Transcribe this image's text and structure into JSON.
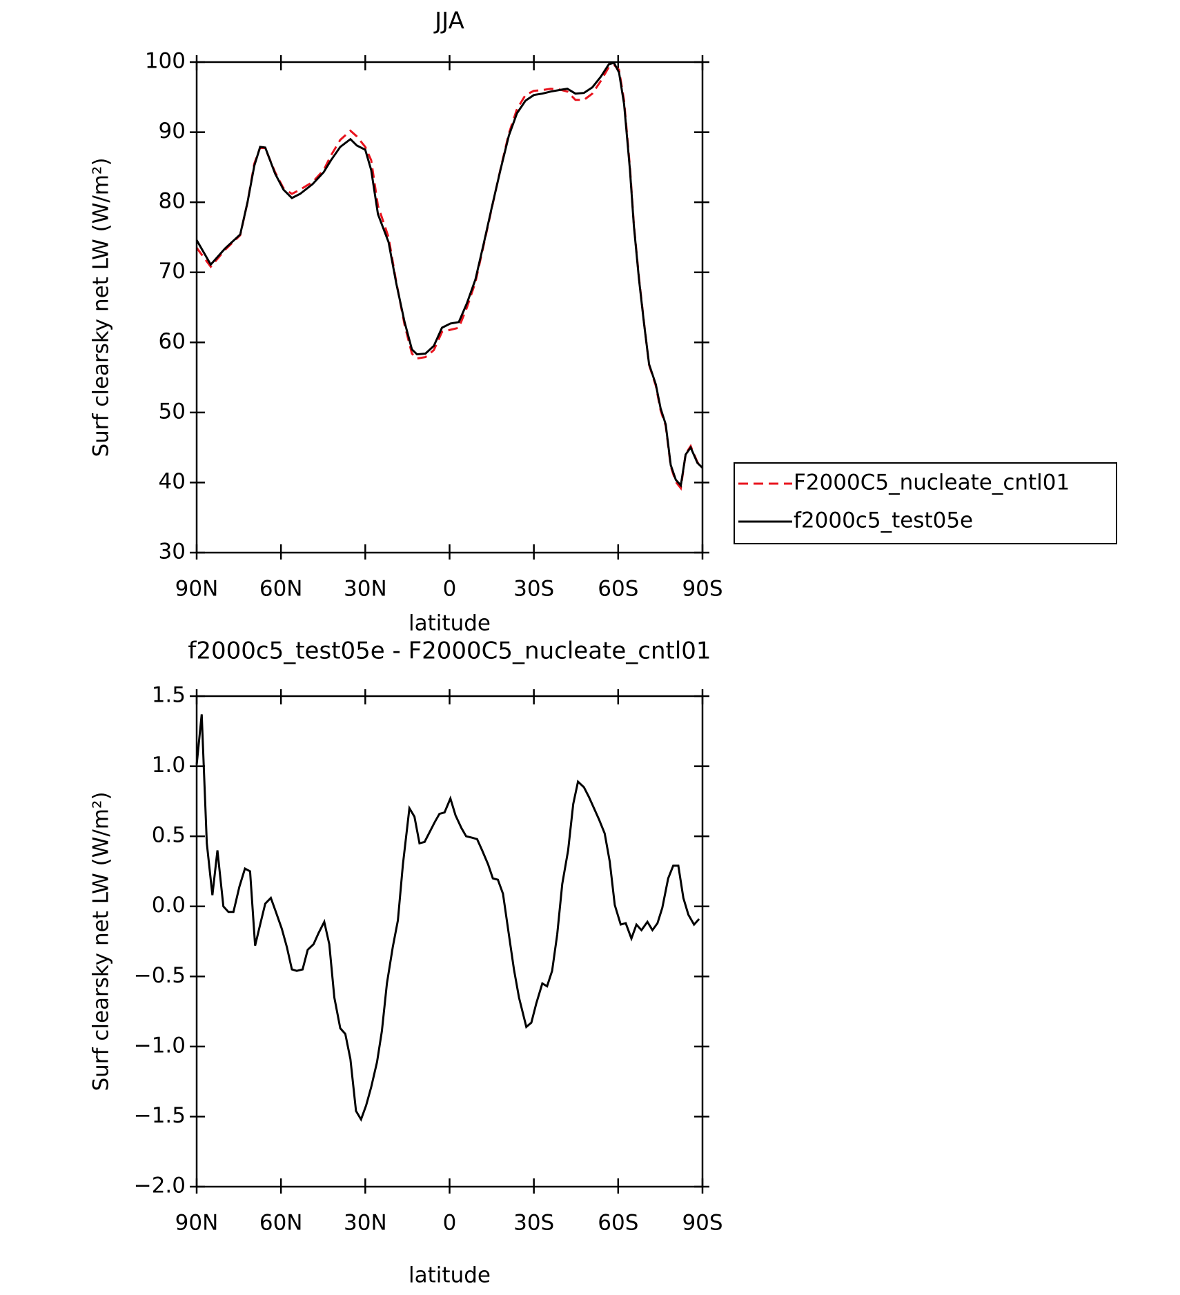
{
  "chart_data": [
    {
      "type": "line",
      "title": "JJA",
      "xlabel": "latitude",
      "ylabel": "Surf clearsky net LW (W/m²)",
      "xlim": [
        90,
        -90
      ],
      "xticks": [
        {
          "value": 90,
          "label": "90N"
        },
        {
          "value": 60,
          "label": "60N"
        },
        {
          "value": 30,
          "label": "30N"
        },
        0,
        {
          "value": -30,
          "label": "30S"
        },
        {
          "value": -60,
          "label": "60S"
        },
        {
          "value": -90,
          "label": "90S"
        }
      ],
      "ylim": [
        30,
        100
      ],
      "yticks": [
        30,
        40,
        50,
        60,
        70,
        80,
        90,
        100
      ],
      "legend": "right",
      "x": [
        90,
        85,
        79.9,
        74.5,
        71.9,
        69.5,
        67.4,
        65.6,
        62.1,
        59.1,
        56.1,
        53.2,
        48.7,
        44.8,
        42.2,
        38.9,
        35.3,
        33,
        30,
        27.9,
        25.5,
        21.7,
        19,
        16,
        13.4,
        11.6,
        8.6,
        5.6,
        2.7,
        -0.3,
        -3.3,
        -6.2,
        -9.2,
        -12.2,
        -15.1,
        -18.1,
        -21.1,
        -24,
        -27,
        -30,
        -33,
        -36,
        -38.9,
        -41.9,
        -44.8,
        -47.8,
        -50.8,
        -53.8,
        -56.7,
        -58.5,
        -60.3,
        -62.1,
        -64.2,
        -65.6,
        -67.4,
        -69.2,
        -71,
        -73.4,
        -75.1,
        -76.9,
        -78.7,
        -80.5,
        -82.3,
        -84,
        -85.8,
        -88.2,
        -90
      ],
      "series": [
        {
          "name": "F2000C5_nucleate_cntl01",
          "color": "#e8141e",
          "line_style": "dashed",
          "values": [
            73.5,
            70.8,
            73.2,
            75.3,
            80,
            85.5,
            87.8,
            87.7,
            84.3,
            82,
            81.2,
            81.8,
            82.9,
            84.6,
            86.7,
            88.9,
            90.2,
            89.4,
            87.9,
            86,
            79.5,
            75,
            68.7,
            62.5,
            58.4,
            57.7,
            57.9,
            58.9,
            61.5,
            61.8,
            62.1,
            65,
            68.6,
            74,
            79.3,
            84.7,
            89.8,
            93.3,
            95.3,
            95.9,
            96,
            96.2,
            96.1,
            95.8,
            94.6,
            94.6,
            95.5,
            97.3,
            99.3,
            99.6,
            98.9,
            94.5,
            85,
            76.8,
            69.2,
            62.8,
            56.8,
            53.8,
            50.3,
            48.1,
            42.3,
            40.1,
            39.2,
            44.1,
            45.2,
            42.9,
            42.2
          ]
        },
        {
          "name": "f2000c5_test05e",
          "color": "#000000",
          "line_style": "solid",
          "values": [
            74.6,
            71.1,
            73.4,
            75.4,
            80,
            85.2,
            87.9,
            87.8,
            84.1,
            81.8,
            80.6,
            81.2,
            82.6,
            84.3,
            86,
            87.9,
            89,
            88.1,
            87.5,
            84.6,
            78.3,
            74.3,
            68.5,
            62.9,
            59,
            58.3,
            58.4,
            59.5,
            62.1,
            62.7,
            62.9,
            65.6,
            69,
            74.2,
            79.4,
            84.6,
            89.5,
            92.7,
            94.5,
            95.3,
            95.5,
            95.8,
            96,
            96.2,
            95.5,
            95.6,
            96.4,
            97.9,
            99.7,
            99.9,
            98.5,
            94,
            84.6,
            76.6,
            69,
            62.7,
            56.9,
            54,
            50.6,
            48.3,
            42.5,
            40.4,
            39.6,
            44,
            45,
            42.8,
            42.1
          ]
        }
      ]
    },
    {
      "type": "line",
      "title": "f2000c5_test05e - F2000C5_nucleate_cntl01",
      "xlabel": "latitude",
      "ylabel": "Surf clearsky net LW (W/m²)",
      "xlim": [
        90,
        -90
      ],
      "xticks": [
        {
          "value": 90,
          "label": "90N"
        },
        {
          "value": 60,
          "label": "60N"
        },
        {
          "value": 30,
          "label": "30N"
        },
        0,
        {
          "value": -30,
          "label": "30S"
        },
        {
          "value": -60,
          "label": "60S"
        },
        {
          "value": -90,
          "label": "90S"
        }
      ],
      "ylim": [
        -2,
        1.5
      ],
      "yticks": [
        {
          "value": -2,
          "label": "−2.0"
        },
        {
          "value": -1.5,
          "label": "−1.5"
        },
        {
          "value": -1,
          "label": "−1.0"
        },
        {
          "value": -0.5,
          "label": "−0.5"
        },
        {
          "value": 0,
          "label": "0.0"
        },
        0.5,
        {
          "value": 1,
          "label": "1.0"
        },
        1.5
      ],
      "color": "#000000",
      "x": [
        90,
        88.2,
        86.4,
        84.4,
        82.6,
        80.5,
        78.7,
        76.9,
        74.8,
        72.8,
        71,
        69.2,
        67.4,
        65.6,
        63.6,
        61.8,
        59.7,
        57.9,
        56.1,
        54.4,
        52.3,
        50.5,
        48.4,
        46.6,
        44.6,
        42.8,
        41,
        38.9,
        37.1,
        35.3,
        33.3,
        31.5,
        29.7,
        27.9,
        25.8,
        24.1,
        22.3,
        20.2,
        18.4,
        16.6,
        14.3,
        12.5,
        10.7,
        8.9,
        5.3,
        3.6,
        1.8,
        -0.3,
        -2.1,
        -4.2,
        -5.9,
        -8,
        -9.8,
        -11.6,
        -13.7,
        -15.4,
        -17.2,
        -19,
        -21.1,
        -22.9,
        -24.7,
        -27.3,
        -29.1,
        -30.9,
        -33,
        -34.7,
        -36.5,
        -38.3,
        -40.1,
        -42.2,
        -44,
        -45.7,
        -47.8,
        -49.6,
        -51.4,
        -53.2,
        -55.2,
        -57,
        -58.8,
        -60.9,
        -62.7,
        -64.7,
        -66.5,
        -68.3,
        -70.4,
        -72.2,
        -74,
        -75.7,
        -77.8,
        -79.6,
        -81.4,
        -83.2,
        -85,
        -87,
        -88.8
      ],
      "values": [
        1.01,
        1.37,
        0.45,
        0.08,
        0.4,
        0,
        -0.04,
        -0.04,
        0.14,
        0.27,
        0.25,
        -0.28,
        -0.13,
        0.02,
        0.06,
        -0.04,
        -0.16,
        -0.29,
        -0.45,
        -0.46,
        -0.45,
        -0.31,
        -0.27,
        -0.19,
        -0.11,
        -0.27,
        -0.65,
        -0.87,
        -0.91,
        -1.09,
        -1.46,
        -1.52,
        -1.42,
        -1.29,
        -1.11,
        -0.89,
        -0.55,
        -0.29,
        -0.1,
        0.3,
        0.7,
        0.64,
        0.45,
        0.46,
        0.6,
        0.66,
        0.67,
        0.77,
        0.65,
        0.56,
        0.5,
        0.49,
        0.48,
        0.4,
        0.3,
        0.2,
        0.19,
        0.09,
        -0.2,
        -0.45,
        -0.65,
        -0.86,
        -0.83,
        -0.69,
        -0.55,
        -0.57,
        -0.46,
        -0.2,
        0.16,
        0.4,
        0.73,
        0.89,
        0.85,
        0.78,
        0.7,
        0.62,
        0.52,
        0.32,
        0.01,
        -0.13,
        -0.12,
        -0.23,
        -0.13,
        -0.17,
        -0.11,
        -0.17,
        -0.12,
        -0.01,
        0.2,
        0.29,
        0.29,
        0.06,
        -0.06,
        -0.13,
        -0.09
      ]
    }
  ]
}
